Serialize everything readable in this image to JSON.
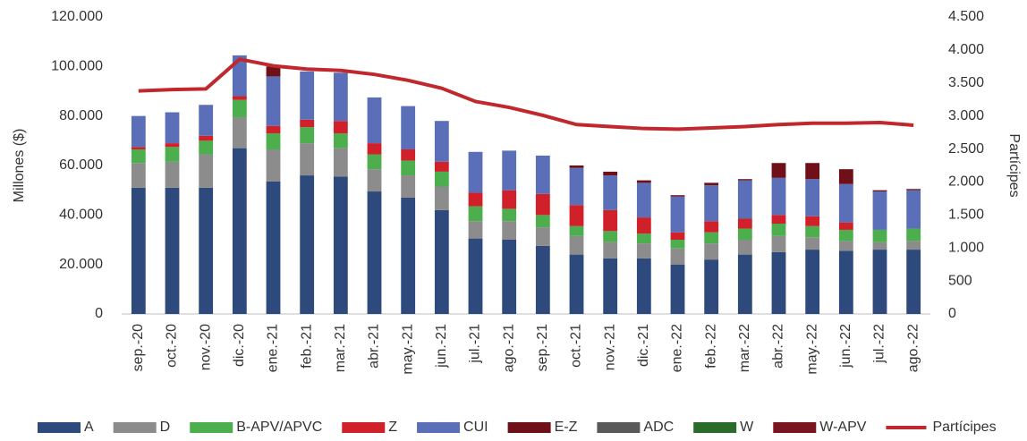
{
  "chart_data": {
    "type": "bar",
    "categories": [
      "sep.-20",
      "oct.-20",
      "nov.-20",
      "dic.-20",
      "ene.-21",
      "feb.-21",
      "mar.-21",
      "abr.-21",
      "may.-21",
      "jun.-21",
      "jul.-21",
      "ago.-21",
      "sep.-21",
      "oct.-21",
      "nov.-21",
      "dic.-21",
      "ene.-22",
      "feb.-22",
      "mar.-22",
      "abr.-22",
      "may.-22",
      "jun.-22",
      "jul.-22",
      "ago.-22"
    ],
    "y_label": "Millones ($)",
    "y2_label": "Partícipes",
    "stacked": true,
    "ylim": [
      0,
      120000
    ],
    "yticks": [
      0,
      {
        "value": 20000,
        "label": "20.000"
      },
      {
        "value": 40000,
        "label": "40.000"
      },
      {
        "value": 60000,
        "label": "60.000"
      },
      {
        "value": 80000,
        "label": "80.000"
      },
      {
        "value": 100000,
        "label": "100.000"
      },
      {
        "value": 120000,
        "label": "120.000"
      }
    ],
    "y2lim": [
      0,
      4500
    ],
    "y2ticks": [
      0,
      500,
      {
        "value": 1000,
        "label": "1.000"
      },
      {
        "value": 1500,
        "label": "1.500"
      },
      {
        "value": 2000,
        "label": "2.000"
      },
      {
        "value": 2500,
        "label": "2.500"
      },
      {
        "value": 3000,
        "label": "3.000"
      },
      {
        "value": 3500,
        "label": "3.500"
      },
      {
        "value": 4000,
        "label": "4.000"
      },
      {
        "value": 4500,
        "label": "4.500"
      }
    ],
    "series": [
      {
        "name": "A",
        "color": "#2e4a7d",
        "values": [
          51000,
          51000,
          51000,
          67000,
          53500,
          56000,
          55500,
          49500,
          47000,
          42000,
          30500,
          30000,
          27500,
          24000,
          22500,
          22500,
          20000,
          22000,
          24000,
          25000,
          26000,
          25500,
          26000,
          26000
        ]
      },
      {
        "name": "D",
        "color": "#8c8c8c",
        "values": [
          10000,
          10500,
          13500,
          12500,
          13000,
          13000,
          11500,
          9000,
          9000,
          9500,
          7000,
          7500,
          7500,
          7500,
          6500,
          6000,
          6500,
          6500,
          6000,
          6500,
          5000,
          4000,
          3000,
          3500
        ]
      },
      {
        "name": "B-APV/APVC",
        "color": "#4cae4c",
        "values": [
          5500,
          6000,
          5500,
          7000,
          6500,
          6500,
          6000,
          6000,
          6000,
          6000,
          6000,
          5000,
          5000,
          4000,
          4500,
          4000,
          3500,
          4500,
          4500,
          5000,
          4500,
          4500,
          5000,
          5000
        ]
      },
      {
        "name": "Z",
        "color": "#d0202a",
        "values": [
          1000,
          1500,
          2000,
          1500,
          3000,
          3000,
          5000,
          4500,
          4500,
          4000,
          5500,
          7500,
          8500,
          8500,
          8500,
          6500,
          3000,
          4500,
          4000,
          3500,
          4000,
          3000,
          0,
          0
        ]
      },
      {
        "name": "CUI",
        "color": "#5b6fb8",
        "values": [
          12500,
          12500,
          12500,
          16500,
          20000,
          19500,
          19500,
          18500,
          17500,
          16500,
          16500,
          16000,
          15500,
          15000,
          14000,
          14000,
          14500,
          14500,
          15500,
          15000,
          15000,
          15500,
          15500,
          15500
        ]
      },
      {
        "name": "E-Z",
        "color": "#6f1018",
        "values": [
          0,
          0,
          0,
          0,
          4000,
          0,
          0,
          0,
          0,
          0,
          0,
          0,
          0,
          1000,
          1500,
          1000,
          500,
          1000,
          500,
          6000,
          6500,
          6000,
          500,
          500
        ]
      },
      {
        "name": "ADC",
        "color": "#595959",
        "values": [
          0,
          0,
          0,
          0,
          0,
          0,
          0,
          0,
          0,
          0,
          0,
          0,
          0,
          0,
          0,
          0,
          0,
          0,
          0,
          0,
          0,
          0,
          0,
          0
        ]
      },
      {
        "name": "W",
        "color": "#2a6b2a",
        "values": [
          0,
          0,
          0,
          0,
          0,
          0,
          0,
          0,
          0,
          0,
          0,
          0,
          0,
          0,
          0,
          0,
          0,
          0,
          0,
          0,
          0,
          0,
          0,
          0
        ]
      },
      {
        "name": "W-APV",
        "color": "#7a1420",
        "values": [
          0,
          0,
          0,
          0,
          0,
          0,
          0,
          0,
          0,
          0,
          0,
          0,
          0,
          0,
          0,
          0,
          0,
          0,
          0,
          0,
          0,
          0,
          0,
          0
        ]
      },
      {
        "name": "Partícipes",
        "color": "#c0282e",
        "type": "line",
        "axis": "y2",
        "values": [
          3380,
          3400,
          3410,
          3860,
          3760,
          3710,
          3690,
          3630,
          3540,
          3420,
          3220,
          3130,
          3010,
          2870,
          2840,
          2810,
          2800,
          2820,
          2840,
          2870,
          2890,
          2890,
          2900,
          2860
        ]
      }
    ]
  }
}
